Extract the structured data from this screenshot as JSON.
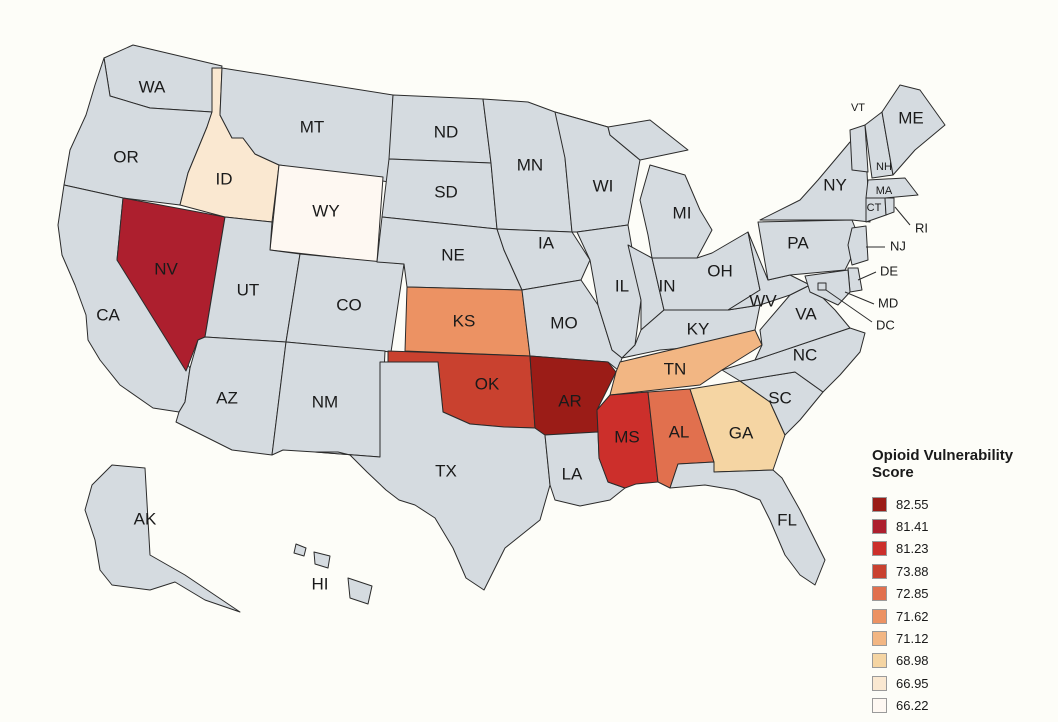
{
  "map": {
    "base_color": "#d5dbe0",
    "states": [
      {
        "abbr": "WA"
      },
      {
        "abbr": "OR"
      },
      {
        "abbr": "CA"
      },
      {
        "abbr": "NV",
        "score": 81.41
      },
      {
        "abbr": "ID",
        "score": 66.95
      },
      {
        "abbr": "MT"
      },
      {
        "abbr": "WY",
        "score": 66.22
      },
      {
        "abbr": "UT"
      },
      {
        "abbr": "AZ"
      },
      {
        "abbr": "CO"
      },
      {
        "abbr": "NM"
      },
      {
        "abbr": "ND"
      },
      {
        "abbr": "SD"
      },
      {
        "abbr": "NE"
      },
      {
        "abbr": "KS",
        "score": 71.62
      },
      {
        "abbr": "OK",
        "score": 73.88
      },
      {
        "abbr": "TX"
      },
      {
        "abbr": "MN"
      },
      {
        "abbr": "IA"
      },
      {
        "abbr": "MO"
      },
      {
        "abbr": "AR",
        "score": 82.55
      },
      {
        "abbr": "LA"
      },
      {
        "abbr": "WI"
      },
      {
        "abbr": "IL"
      },
      {
        "abbr": "MI"
      },
      {
        "abbr": "IN"
      },
      {
        "abbr": "OH"
      },
      {
        "abbr": "KY"
      },
      {
        "abbr": "TN",
        "score": 71.12
      },
      {
        "abbr": "MS",
        "score": 81.23
      },
      {
        "abbr": "AL",
        "score": 72.85
      },
      {
        "abbr": "GA",
        "score": 68.98
      },
      {
        "abbr": "FL"
      },
      {
        "abbr": "SC"
      },
      {
        "abbr": "NC"
      },
      {
        "abbr": "VA"
      },
      {
        "abbr": "WV"
      },
      {
        "abbr": "PA"
      },
      {
        "abbr": "NY"
      },
      {
        "abbr": "VT"
      },
      {
        "abbr": "NH"
      },
      {
        "abbr": "ME"
      },
      {
        "abbr": "MA"
      },
      {
        "abbr": "CT"
      },
      {
        "abbr": "RI"
      },
      {
        "abbr": "NJ"
      },
      {
        "abbr": "DE"
      },
      {
        "abbr": "MD"
      },
      {
        "abbr": "DC"
      },
      {
        "abbr": "AK"
      },
      {
        "abbr": "HI"
      }
    ]
  },
  "legend": {
    "title": "Opioid Vulnerability Score",
    "items": [
      {
        "value": "82.55",
        "color": "#9b1c17"
      },
      {
        "value": "81.41",
        "color": "#ad1f2e"
      },
      {
        "value": "81.23",
        "color": "#cc2f2b"
      },
      {
        "value": "73.88",
        "color": "#c9412f"
      },
      {
        "value": "72.85",
        "color": "#e1704e"
      },
      {
        "value": "71.62",
        "color": "#ec9263"
      },
      {
        "value": "71.12",
        "color": "#f2b683"
      },
      {
        "value": "68.98",
        "color": "#f5d5a3"
      },
      {
        "value": "66.95",
        "color": "#fae8d1"
      },
      {
        "value": "66.22",
        "color": "#fef8f2"
      }
    ]
  }
}
